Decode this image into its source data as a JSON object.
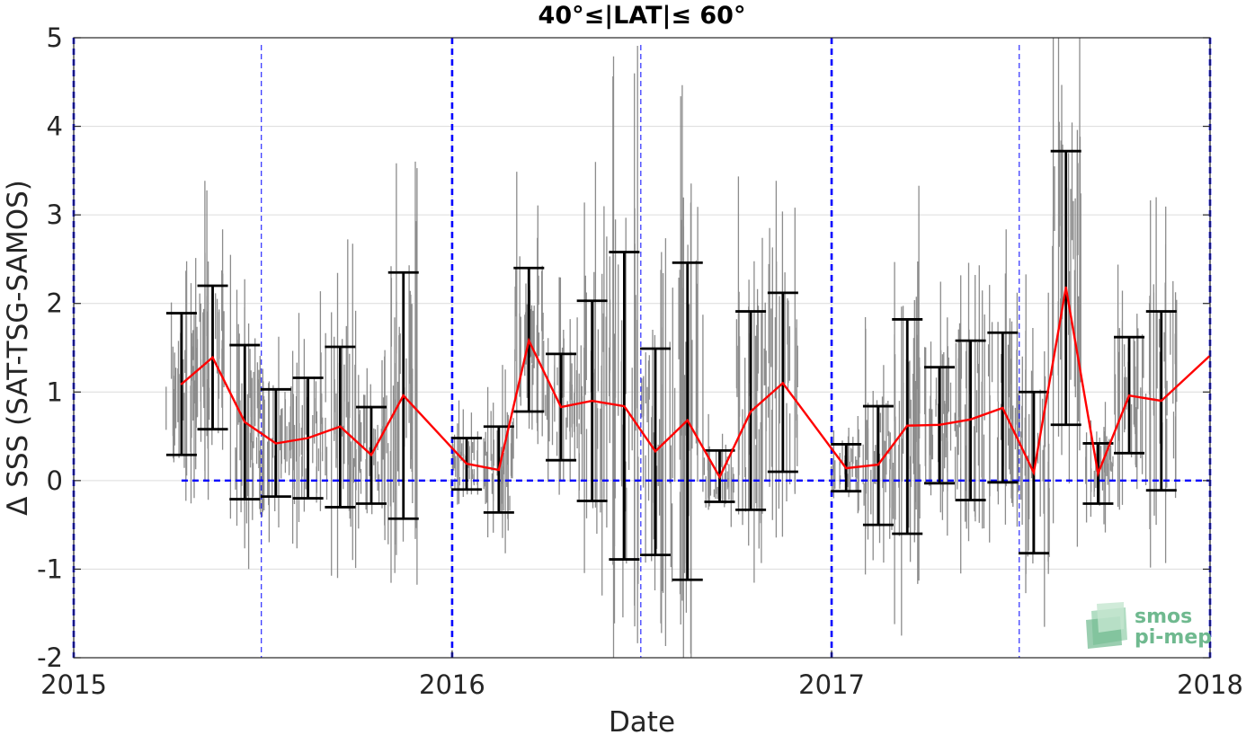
{
  "chart_data": {
    "type": "line",
    "title": "40°≤|LAT|≤ 60°",
    "xlabel": "Date",
    "ylabel": "Δ SSS (SAT-TSG-SAMOS)",
    "x_ticks": [
      "2015",
      "2016",
      "2017",
      "2018"
    ],
    "y_ticks": [
      "-2",
      "-1",
      "0",
      "1",
      "2",
      "3",
      "4",
      "5"
    ],
    "xlim": [
      "2015-01-01",
      "2018-01-01"
    ],
    "ylim": [
      -2,
      5
    ],
    "grid": true,
    "colors": {
      "mean_line": "#ff0000",
      "error_bars": "#000000",
      "scatter": "#808080",
      "reference_lines": "#0000ff"
    },
    "reference": {
      "zero_line_from": "2015-04-15",
      "year_boundaries": [
        "2015-01-01",
        "2016-01-01",
        "2017-01-01",
        "2018-01-01"
      ],
      "half_year_marks": [
        "2015-07-01",
        "2016-07-01",
        "2017-07-01"
      ]
    },
    "series": [
      {
        "x": [
          "2015-04-15",
          "2015-05-15",
          "2015-06-15",
          "2015-07-15",
          "2015-08-15",
          "2015-09-15",
          "2015-10-15",
          "2015-11-15",
          "2016-01-15",
          "2016-02-15",
          "2016-03-15",
          "2016-04-15",
          "2016-05-15",
          "2016-06-15",
          "2016-07-15",
          "2016-08-15",
          "2016-09-15",
          "2016-10-15",
          "2016-11-15",
          "2017-01-15",
          "2017-02-15",
          "2017-03-15",
          "2017-04-15",
          "2017-05-15",
          "2017-06-15",
          "2017-07-15",
          "2017-08-15",
          "2017-09-15",
          "2017-10-15",
          "2017-11-15",
          "2017-12-31"
        ],
        "y": [
          1.09,
          1.39,
          0.66,
          0.42,
          0.48,
          0.61,
          0.29,
          0.96,
          0.19,
          0.12,
          1.58,
          0.83,
          0.9,
          0.84,
          0.33,
          0.68,
          0.04,
          0.78,
          1.1,
          0.14,
          0.18,
          0.62,
          0.63,
          0.69,
          0.82,
          0.09,
          2.18,
          0.08,
          0.96,
          0.9,
          1.4
        ],
        "low": [
          0.29,
          0.58,
          -0.21,
          -0.18,
          -0.2,
          -0.3,
          -0.26,
          -0.43,
          -0.1,
          -0.36,
          0.78,
          0.23,
          -0.23,
          -0.89,
          -0.84,
          -1.12,
          -0.24,
          -0.33,
          0.1,
          -0.12,
          -0.5,
          -0.6,
          -0.03,
          -0.22,
          -0.02,
          -0.82,
          0.63,
          -0.26,
          0.31,
          -0.11,
          null
        ],
        "high": [
          1.89,
          2.2,
          1.53,
          1.03,
          1.16,
          1.51,
          0.83,
          2.35,
          0.48,
          0.61,
          2.4,
          1.43,
          2.03,
          2.58,
          1.49,
          2.46,
          0.34,
          1.91,
          2.12,
          0.41,
          0.84,
          1.82,
          1.28,
          1.58,
          1.67,
          1.0,
          3.72,
          0.42,
          1.62,
          1.91,
          null
        ]
      }
    ],
    "logo": {
      "line1": "smos",
      "line2": "pi-mep"
    }
  }
}
